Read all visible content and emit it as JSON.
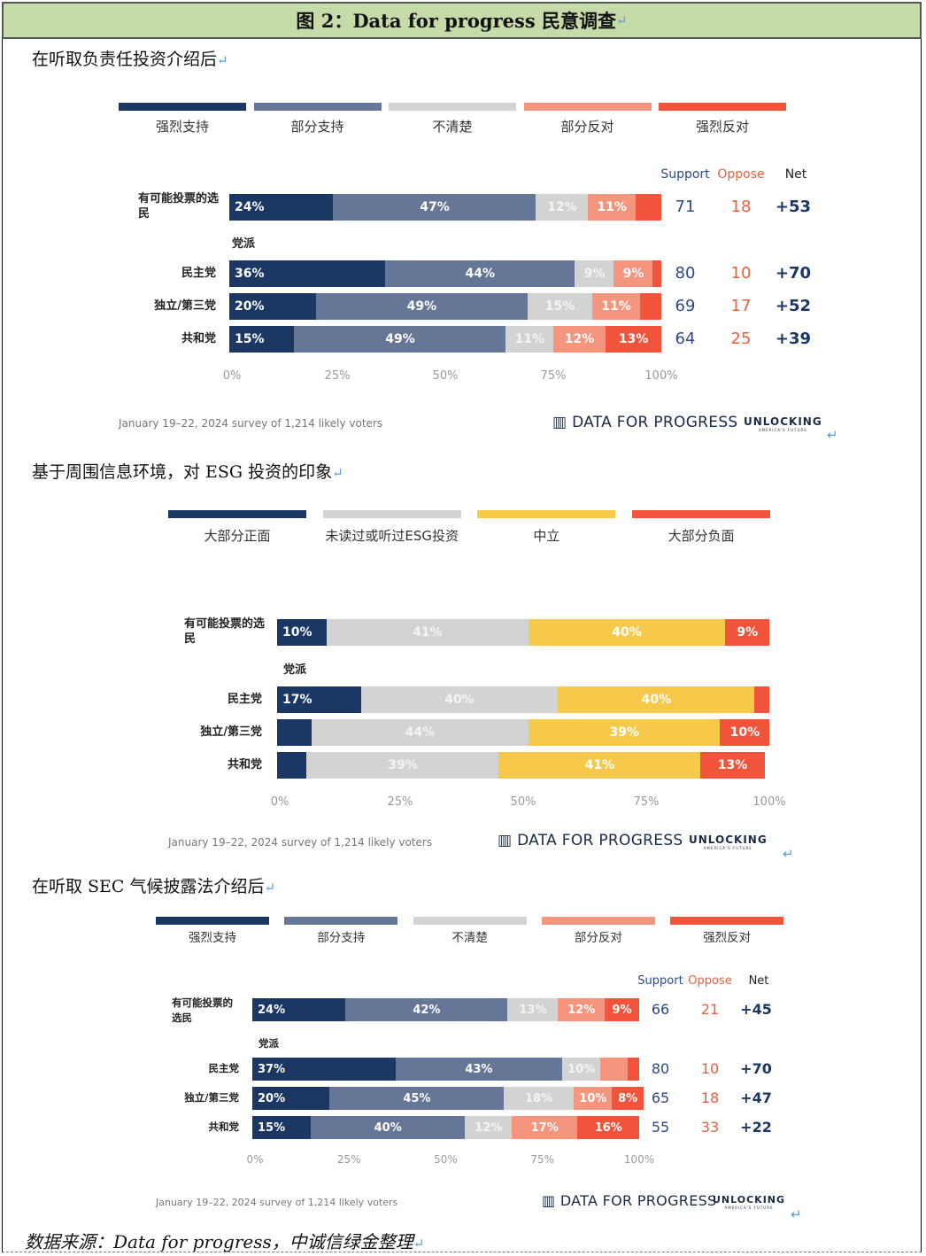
{
  "page": {
    "header": "图 2：Data for progress 民意调查",
    "footer": "数据来源：Data for progress，中诚信绿金整理"
  },
  "chart_data": [
    {
      "type": "bar",
      "title": "在听取负责任投资介绍后",
      "legend": [
        "强烈支持",
        "部分支持",
        "不清楚",
        "部分反对",
        "强烈反对"
      ],
      "colors": [
        "#1b3764",
        "#667696",
        "#d3d3d3",
        "#f5957d",
        "#f2543b"
      ],
      "col_headers": [
        "Support",
        "Oppose",
        "Net"
      ],
      "group_label": "党派",
      "categories": [
        "有可能投票的选民",
        "民主党",
        "独立/第三党",
        "共和党"
      ],
      "rows": [
        {
          "name": "有可能投票的选民",
          "values": [
            24,
            47,
            12,
            11,
            6
          ],
          "labels": [
            "24%",
            "47%",
            "12%",
            "11%",
            ""
          ],
          "support": "71",
          "oppose": "18",
          "net": "+53"
        },
        {
          "name": "民主党",
          "values": [
            36,
            44,
            9,
            9,
            2
          ],
          "labels": [
            "36%",
            "44%",
            "9%",
            "9%",
            ""
          ],
          "support": "80",
          "oppose": "10",
          "net": "+70"
        },
        {
          "name": "独立/第三党",
          "values": [
            20,
            49,
            15,
            11,
            5
          ],
          "labels": [
            "20%",
            "49%",
            "15%",
            "11%",
            ""
          ],
          "support": "69",
          "oppose": "17",
          "net": "+52"
        },
        {
          "name": "共和党",
          "values": [
            15,
            49,
            11,
            12,
            13
          ],
          "labels": [
            "15%",
            "49%",
            "11%",
            "12%",
            "13%"
          ],
          "support": "64",
          "oppose": "25",
          "net": "+39"
        }
      ],
      "ticks": [
        "0%",
        "25%",
        "50%",
        "75%",
        "100%"
      ],
      "note": "January 19–22, 2024 survey of 1,214 likely voters",
      "brand": "DATA FOR PROGRESS",
      "logo": "UNLOCKING",
      "logo_sub": "AMERICA'S FUTURE"
    },
    {
      "type": "bar",
      "title": "基于周围信息环境，对 ESG 投资的印象",
      "legend": [
        "大部分正面",
        "未读过或听过ESG投资",
        "中立",
        "大部分负面"
      ],
      "colors": [
        "#1b3764",
        "#d3d3d3",
        "#f6c94a",
        "#f2543b"
      ],
      "group_label": "党派",
      "categories": [
        "有可能投票的选民",
        "民主党",
        "独立/第三党",
        "共和党"
      ],
      "rows": [
        {
          "name": "有可能投票的选民",
          "values": [
            10,
            41,
            40,
            9
          ],
          "labels": [
            "10%",
            "41%",
            "40%",
            "9%"
          ]
        },
        {
          "name": "民主党",
          "values": [
            17,
            40,
            40,
            3
          ],
          "labels": [
            "17%",
            "40%",
            "40%",
            ""
          ]
        },
        {
          "name": "独立/第三党",
          "values": [
            7,
            44,
            39,
            10
          ],
          "labels": [
            "",
            "44%",
            "39%",
            "10%"
          ]
        },
        {
          "name": "共和党",
          "values": [
            6,
            39,
            41,
            13
          ],
          "labels": [
            "",
            "39%",
            "41%",
            "13%"
          ]
        }
      ],
      "ticks": [
        "0%",
        "25%",
        "50%",
        "75%",
        "100%"
      ],
      "note": "January 19–22, 2024 survey of 1,214 likely voters",
      "brand": "DATA FOR PROGRESS",
      "logo": "UNLOCKING",
      "logo_sub": "AMERICA'S FUTURE"
    },
    {
      "type": "bar",
      "title": "在听取 SEC 气候披露法介绍后",
      "legend": [
        "强烈支持",
        "部分支持",
        "不清楚",
        "部分反对",
        "强烈反对"
      ],
      "colors": [
        "#1b3764",
        "#667696",
        "#d3d3d3",
        "#f5957d",
        "#f2543b"
      ],
      "col_headers": [
        "Support",
        "Oppose",
        "Net"
      ],
      "group_label": "党派",
      "categories": [
        "有可能投票的选民",
        "民主党",
        "独立/第三党",
        "共和党"
      ],
      "rows": [
        {
          "name": "有可能投票的选民",
          "values": [
            24,
            42,
            13,
            12,
            9
          ],
          "labels": [
            "24%",
            "42%",
            "13%",
            "12%",
            "9%"
          ],
          "support": "66",
          "oppose": "21",
          "net": "+45"
        },
        {
          "name": "民主党",
          "values": [
            37,
            43,
            10,
            7,
            3
          ],
          "labels": [
            "37%",
            "43%",
            "10%",
            "",
            ""
          ],
          "support": "80",
          "oppose": "10",
          "net": "+70"
        },
        {
          "name": "独立/第三党",
          "values": [
            20,
            45,
            18,
            10,
            8
          ],
          "labels": [
            "20%",
            "45%",
            "18%",
            "10%",
            "8%"
          ],
          "support": "65",
          "oppose": "18",
          "net": "+47"
        },
        {
          "name": "共和党",
          "values": [
            15,
            40,
            12,
            17,
            16
          ],
          "labels": [
            "15%",
            "40%",
            "12%",
            "17%",
            "16%"
          ],
          "support": "55",
          "oppose": "33",
          "net": "+22"
        }
      ],
      "ticks": [
        "0%",
        "25%",
        "50%",
        "75%",
        "100%"
      ],
      "note": "January 19–22, 2024 survey of 1,214 likely voters",
      "brand": "DATA FOR PROGRESS",
      "logo": "UNLOCKING",
      "logo_sub": "AMERICA'S FUTURE"
    }
  ]
}
